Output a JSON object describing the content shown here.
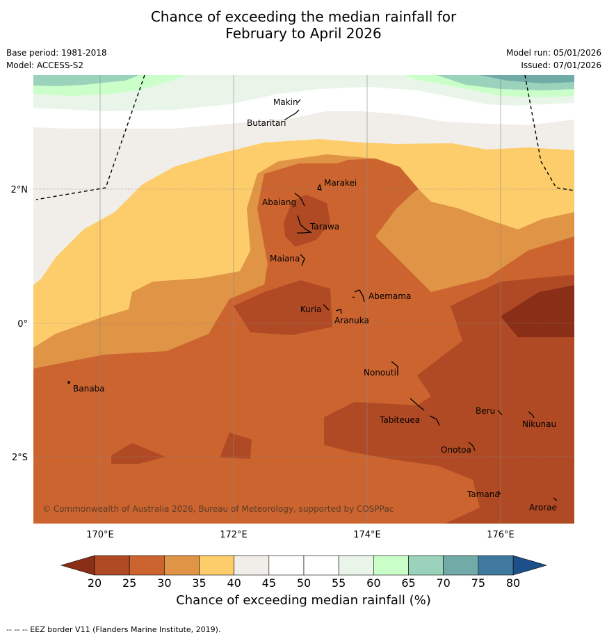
{
  "header": {
    "title_line1": "Chance of exceeding the median rainfall for",
    "title_line2": "February to April 2026",
    "base_period": "Base period: 1981-2018",
    "model": "Model: ACCESS-S2",
    "model_run": "Model run: 05/01/2026",
    "issued": "Issued: 07/01/2026"
  },
  "map": {
    "copyright": "© Commonwealth of Australia 2026, Bureau of Meteorology, supported by COSPPac",
    "lon_labels": [
      "170°E",
      "172°E",
      "174°E",
      "176°E"
    ],
    "lat_labels": [
      "2°N",
      "0°",
      "2°S"
    ],
    "places": [
      "Makin",
      "Butaritari",
      "Marakei",
      "Abaiang",
      "Tarawa",
      "Maiana",
      "Abemama",
      "Kuria",
      "Aranuka",
      "Nonouti",
      "Banaba",
      "Beru",
      "Nikunau",
      "Tabiteuea",
      "Onotoa",
      "Tamana",
      "Arorae"
    ]
  },
  "colorbar": {
    "label": "Chance of exceeding median rainfall (%)",
    "ticks": [
      "20",
      "25",
      "30",
      "35",
      "40",
      "45",
      "50",
      "55",
      "60",
      "65",
      "70",
      "75",
      "80"
    ],
    "colors": [
      "#8b2e18",
      "#b04a24",
      "#cc6430",
      "#e09445",
      "#fdcd6b",
      "#f1ede8",
      "#ffffff",
      "#ffffff",
      "#eaf5ea",
      "#caffca",
      "#9ad2bb",
      "#71aba8",
      "#3f7a9e",
      "#1d4f8a"
    ]
  },
  "footnote": "--  --  -- EEZ border V11 (Flanders Marine Institute, 2019)."
}
